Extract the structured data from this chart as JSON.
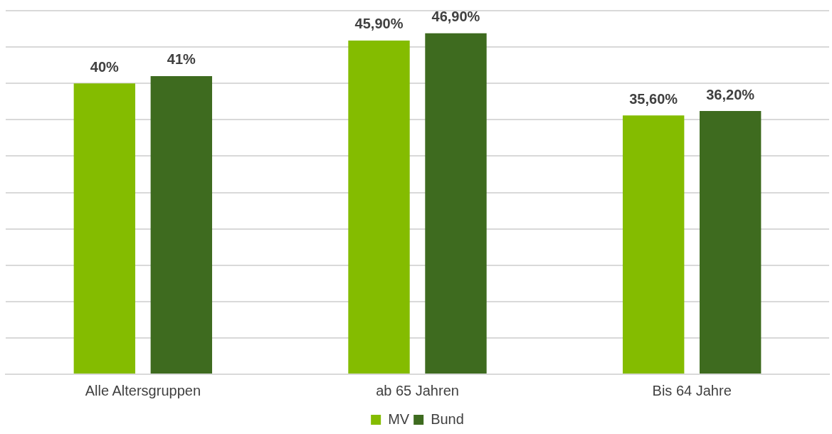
{
  "chart_data": {
    "type": "bar",
    "categories": [
      "Alle Altersgruppen",
      "ab 65 Jahren",
      "Bis 64 Jahre"
    ],
    "series": [
      {
        "name": "MV",
        "color": "#84bc00",
        "values": [
          40,
          45.9,
          35.6
        ],
        "value_labels": [
          "40%",
          "45,90%",
          "35,60%"
        ]
      },
      {
        "name": "Bund",
        "color": "#3e6b1f",
        "values": [
          41,
          46.9,
          36.2
        ],
        "value_labels": [
          "41%",
          "46,90%",
          "36,20%"
        ]
      }
    ],
    "ylim": [
      0,
      50
    ],
    "yticks": [
      {
        "value": 0,
        "label": null
      },
      {
        "value": 5,
        "label": null
      },
      {
        "value": 10,
        "label": null
      },
      {
        "value": 15,
        "label": null
      },
      {
        "value": 20,
        "label": null
      },
      {
        "value": 25,
        "label": null
      },
      {
        "value": 30,
        "label": null
      },
      {
        "value": 35,
        "label": null
      },
      {
        "value": 40,
        "label": null
      },
      {
        "value": 45,
        "label": null
      },
      {
        "value": 50,
        "label": null
      }
    ],
    "tick_labels": "x",
    "grid": "y",
    "legend": "bottom"
  }
}
